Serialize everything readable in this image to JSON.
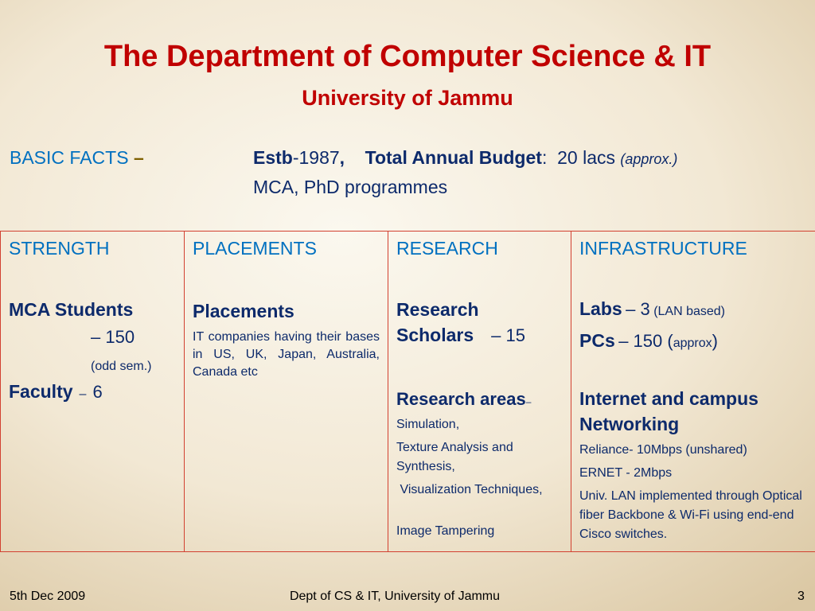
{
  "title": "The Department of Computer Science & IT",
  "subtitle": "University of Jammu",
  "facts": {
    "label": "BASIC FACTS",
    "dash": "–",
    "estb_label": "Estb",
    "estb_value": "-1987",
    "sep": ",",
    "budget_label": "Total Annual Budget",
    "budget_colon": ":",
    "budget_value": "20 lacs",
    "budget_note": "(approx.)",
    "programmes": "MCA, PhD programmes"
  },
  "columns": {
    "strength": {
      "heading": "STRENGTH",
      "mca_label": "MCA Students",
      "mca_value": "– 150",
      "mca_note": "(odd sem.)",
      "faculty_label": "Faculty",
      "faculty_dash": "–",
      "faculty_value": "6"
    },
    "placements": {
      "heading": "PLACEMENTS",
      "sub": "Placements",
      "text": "IT companies having their bases in US, UK, Japan, Australia, Canada etc"
    },
    "research": {
      "heading": "RESEARCH",
      "scholars_l1": "Research",
      "scholars_l2": "Scholars",
      "scholars_value": "– 15",
      "areas_label": "Research areas",
      "areas_dash": "–",
      "areas": [
        "Simulation,",
        "Texture Analysis and Synthesis,",
        " Visualization Techniques,",
        "Image Tampering"
      ]
    },
    "infrastructure": {
      "heading": "INFRASTRUCTURE",
      "labs_label": "Labs",
      "labs_value": "– 3",
      "labs_note": "(LAN based)",
      "pcs_label": "PCs",
      "pcs_value": "– 150 (",
      "pcs_note": "approx",
      "pcs_close": ")",
      "internet_heading": "Internet and campus Networking",
      "items": [
        "Reliance- 10Mbps (unshared)",
        "ERNET - 2Mbps",
        "Univ. LAN implemented through Optical fiber Backbone & Wi-Fi using end-end Cisco switches."
      ]
    }
  },
  "footer": {
    "date": "5th Dec 2009",
    "center": "Dept of CS & IT, University of Jammu",
    "page": "3"
  }
}
